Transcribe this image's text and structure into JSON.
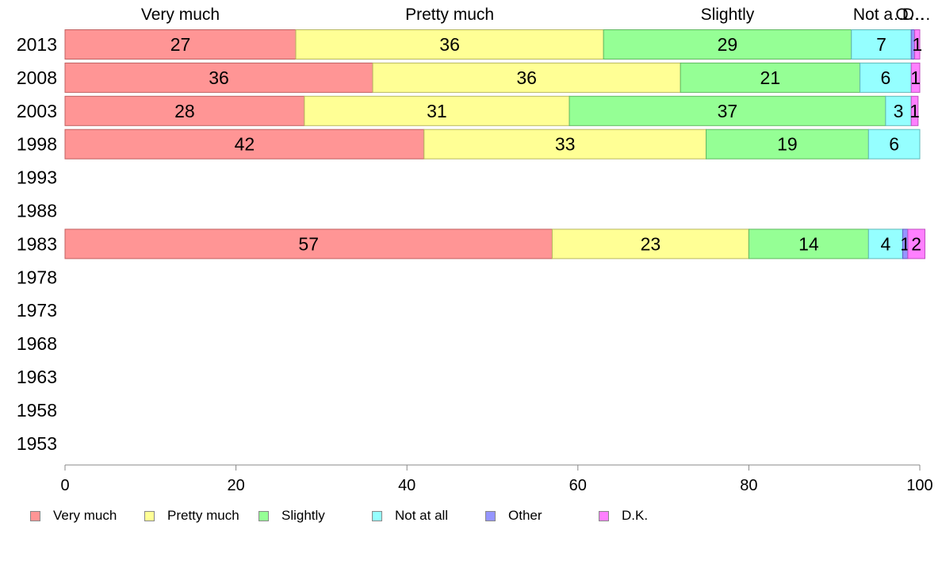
{
  "chart_data": {
    "type": "bar",
    "orientation": "horizontal",
    "stacked": true,
    "categories": [
      "2013",
      "2008",
      "2003",
      "1998",
      "1993",
      "1988",
      "1983",
      "1978",
      "1973",
      "1968",
      "1963",
      "1958",
      "1953"
    ],
    "series": [
      {
        "name": "Very much",
        "color": "#ff9595",
        "values": [
          27,
          36,
          28,
          42,
          null,
          null,
          57,
          null,
          null,
          null,
          null,
          null,
          null
        ]
      },
      {
        "name": "Pretty much",
        "color": "#ffff95",
        "values": [
          36,
          36,
          31,
          33,
          null,
          null,
          23,
          null,
          null,
          null,
          null,
          null,
          null
        ]
      },
      {
        "name": "Slightly",
        "color": "#95ff95",
        "values": [
          29,
          21,
          37,
          19,
          null,
          null,
          14,
          null,
          null,
          null,
          null,
          null,
          null
        ]
      },
      {
        "name": "Not at all",
        "color": "#95ffff",
        "values": [
          7,
          6,
          3,
          6,
          null,
          null,
          4,
          null,
          null,
          null,
          null,
          null,
          null
        ]
      },
      {
        "name": "Other",
        "color": "#9595ff",
        "values": [
          0.4,
          0,
          0,
          0,
          null,
          null,
          0.6,
          null,
          null,
          null,
          null,
          null,
          null
        ]
      },
      {
        "name": "D.K.",
        "color": "#ff80ff",
        "values": [
          0.6,
          1,
          0.8,
          0,
          null,
          null,
          2,
          null,
          null,
          null,
          null,
          null,
          null
        ]
      }
    ],
    "data_labels": [
      [
        "27",
        "36",
        "29",
        "7",
        "",
        "1"
      ],
      [
        "36",
        "36",
        "21",
        "6",
        "",
        "1"
      ],
      [
        "28",
        "31",
        "37",
        "3",
        "",
        "1"
      ],
      [
        "42",
        "33",
        "19",
        "6",
        "",
        ""
      ],
      [],
      [],
      [
        "57",
        "23",
        "14",
        "4",
        "1",
        "2"
      ],
      [],
      [],
      [],
      [],
      [],
      []
    ],
    "top_labels": [
      "Very much",
      "Pretty much",
      "Slightly",
      "Not at all",
      "Other",
      "D.K."
    ],
    "top_label_texts": [
      "Very much",
      "Pretty much",
      "Slightly",
      "Not a…",
      "O…",
      "D…"
    ],
    "xlim": [
      0,
      100
    ],
    "xticks": [
      0,
      20,
      40,
      60,
      80,
      100
    ],
    "grid": false,
    "legend_position": "bottom"
  }
}
